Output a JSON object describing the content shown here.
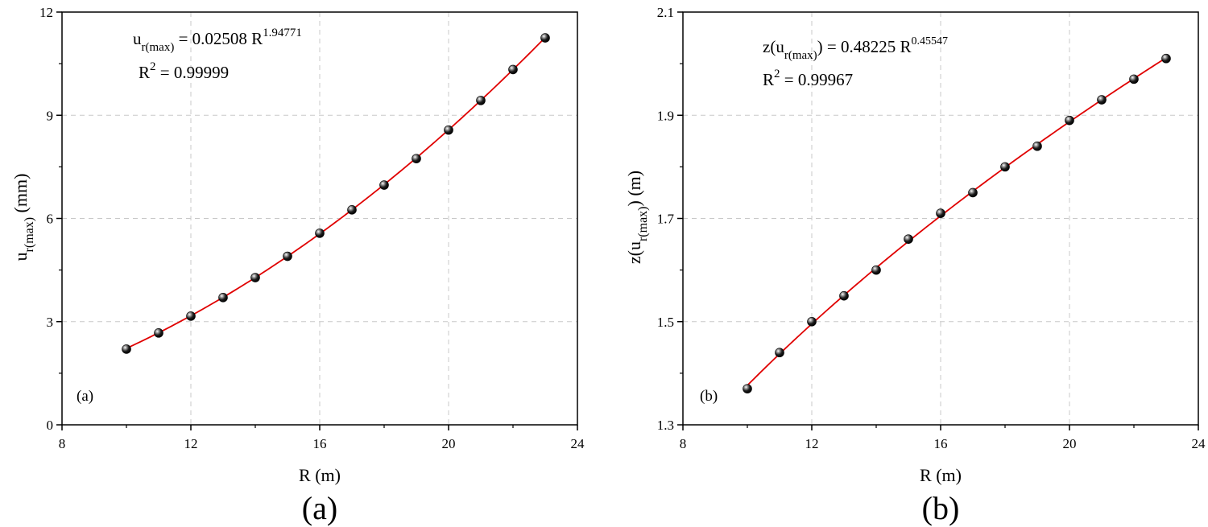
{
  "chart_data": [
    {
      "type": "scatter",
      "panel_label": "(a)",
      "caption": "(a)",
      "xlabel": "R (m)",
      "ylabel": {
        "main": "u",
        "sub": "r(max)",
        "unit": " (mm)"
      },
      "xlim": [
        8,
        24
      ],
      "ylim": [
        0,
        12
      ],
      "xticks": [
        8,
        12,
        16,
        20,
        24
      ],
      "yticks": [
        0,
        3,
        6,
        9,
        12
      ],
      "grid": true,
      "fit": {
        "coefficient": 0.02508,
        "exponent": 1.94771
      },
      "equation": {
        "lhs_main": "u",
        "lhs_sub": "r(max)",
        "rhs": " = 0.02508 R",
        "exponent": "1.94771",
        "r2_label": "R",
        "r2_sup": "2",
        "r2_value": " = 0.99999"
      },
      "series": [
        {
          "x": [
            10,
            11,
            12,
            13,
            14,
            15,
            16,
            17,
            18,
            19,
            20,
            21,
            22,
            23
          ],
          "y": [
            2.2,
            2.67,
            3.16,
            3.7,
            4.28,
            4.9,
            5.57,
            6.25,
            6.97,
            7.74,
            8.57,
            9.43,
            10.33,
            11.25
          ]
        }
      ],
      "colors": {
        "fit": "#e00000",
        "marker": "#000000"
      }
    },
    {
      "type": "scatter",
      "panel_label": "(b)",
      "caption": "(b)",
      "xlabel": "R (m)",
      "ylabel": {
        "main": "z(u",
        "sub": "r(max)",
        "unit": ") (m)"
      },
      "xlim": [
        8,
        24
      ],
      "ylim": [
        1.3,
        2.1
      ],
      "xticks": [
        8,
        12,
        16,
        20,
        24
      ],
      "yticks": [
        1.3,
        1.5,
        1.7,
        1.9,
        2.1
      ],
      "grid": true,
      "fit": {
        "coefficient": 0.48225,
        "exponent": 0.45547
      },
      "equation": {
        "lhs_main": "z(u",
        "lhs_sub": "r(max)",
        "rhs": ")  = 0.48225 R",
        "exponent": "0.45547",
        "r2_label": "R",
        "r2_sup": "2",
        "r2_value": " = 0.99967"
      },
      "series": [
        {
          "x": [
            10,
            11,
            12,
            13,
            14,
            15,
            16,
            17,
            18,
            19,
            20,
            21,
            22,
            23
          ],
          "y": [
            1.37,
            1.44,
            1.5,
            1.55,
            1.6,
            1.66,
            1.71,
            1.75,
            1.8,
            1.84,
            1.89,
            1.93,
            1.97,
            2.01
          ]
        }
      ],
      "colors": {
        "fit": "#e00000",
        "marker": "#000000"
      }
    }
  ]
}
